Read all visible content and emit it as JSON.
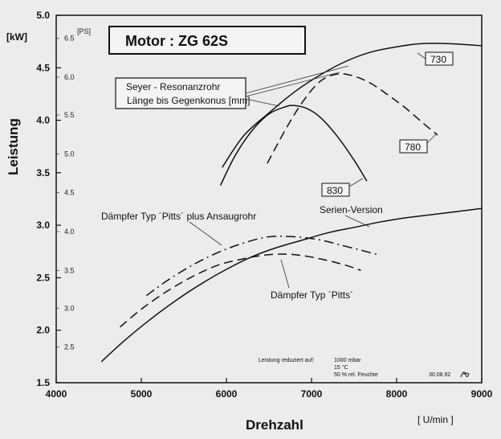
{
  "chart_data": {
    "type": "line",
    "title": "Motor :  ZG 62S",
    "xlabel": "Drehzahl",
    "xunit": "[ U/min ]",
    "ylabel": "Leistung",
    "yunit": "[kW]",
    "y2unit": "[PS]",
    "xlim": [
      4000,
      9000
    ],
    "ylim": [
      1.5,
      5.0
    ],
    "x_ticks": [
      "4000",
      "5000",
      "6000",
      "7000",
      "8000",
      "9000"
    ],
    "y_ticks": [
      "1.5",
      "2.0",
      "2.5",
      "3.0",
      "3.5",
      "4.0",
      "4.5",
      "5.0"
    ],
    "ps_ticks": [
      {
        "label": "2.5",
        "kw": 1.84
      },
      {
        "label": "3.0",
        "kw": 2.21
      },
      {
        "label": "3.5",
        "kw": 2.57
      },
      {
        "label": "4.0",
        "kw": 2.94
      },
      {
        "label": "4.5",
        "kw": 3.31
      },
      {
        "label": "5.0",
        "kw": 3.68
      },
      {
        "label": "5.5",
        "kw": 4.05
      },
      {
        "label": "6.0",
        "kw": 4.41
      },
      {
        "label": "6.5",
        "kw": 4.78
      }
    ],
    "grid": false,
    "series": [
      {
        "name": "730",
        "style": "solid",
        "x": [
          5950,
          6200,
          6500,
          6800,
          7100,
          7400,
          7700,
          8000,
          8300,
          8600,
          9000
        ],
        "y": [
          3.55,
          3.85,
          4.07,
          4.27,
          4.43,
          4.56,
          4.65,
          4.7,
          4.73,
          4.73,
          4.71
        ]
      },
      {
        "name": "780",
        "style": "dashed",
        "x": [
          6480,
          6700,
          6900,
          7100,
          7300,
          7500,
          7700,
          7900,
          8100,
          8300,
          8480
        ],
        "y": [
          3.59,
          3.92,
          4.18,
          4.37,
          4.44,
          4.42,
          4.35,
          4.24,
          4.12,
          3.98,
          3.86
        ]
      },
      {
        "name": "830",
        "style": "solid",
        "x": [
          5930,
          6100,
          6300,
          6500,
          6700,
          6800,
          6950,
          7100,
          7300,
          7500,
          7650
        ],
        "y": [
          3.38,
          3.66,
          3.9,
          4.06,
          4.13,
          4.14,
          4.11,
          4.03,
          3.85,
          3.62,
          3.42
        ]
      },
      {
        "name": "Serien-Version",
        "style": "solid",
        "x": [
          4530,
          4800,
          5100,
          5400,
          5700,
          6000,
          6300,
          6600,
          6900,
          7200,
          7500,
          7800,
          8100,
          8400,
          8700,
          9000
        ],
        "y": [
          1.7,
          1.9,
          2.1,
          2.28,
          2.44,
          2.58,
          2.7,
          2.79,
          2.86,
          2.93,
          2.98,
          3.03,
          3.07,
          3.1,
          3.13,
          3.16
        ]
      },
      {
        "name": "Dämpfer Typ ´Pitts´ plus Ansaugrohr",
        "style": "dashdot",
        "x": [
          5060,
          5300,
          5600,
          5900,
          6200,
          6500,
          6800,
          7100,
          7400,
          7780
        ],
        "y": [
          2.33,
          2.47,
          2.62,
          2.74,
          2.83,
          2.89,
          2.89,
          2.86,
          2.8,
          2.72
        ]
      },
      {
        "name": "Dämpfer Typ ´Pitts´",
        "style": "dashed",
        "x": [
          4750,
          5000,
          5300,
          5600,
          5900,
          6200,
          6500,
          6800,
          7100,
          7400,
          7580
        ],
        "y": [
          2.03,
          2.2,
          2.37,
          2.51,
          2.62,
          2.68,
          2.72,
          2.72,
          2.68,
          2.62,
          2.57
        ]
      }
    ],
    "annotations": {
      "resonance_title": "Seyer - Resonanzrohr",
      "resonance_sub": "Länge bis Gegenkonus [mm]",
      "label_730": "730",
      "label_780": "780",
      "label_830": "830",
      "label_serie": "Serien-Version",
      "label_pitts_plus": "Dämpfer Typ ´Pitts´ plus Ansaugrohr",
      "label_pitts": "Dämpfer Typ ´Pitts´",
      "note_line1": "Leistung reduziert auf:",
      "note_v1": "1000 mbar",
      "note_v2": "15 °C",
      "note_v3": "50 % rel. Feuchte",
      "date": "30.08.92"
    }
  }
}
